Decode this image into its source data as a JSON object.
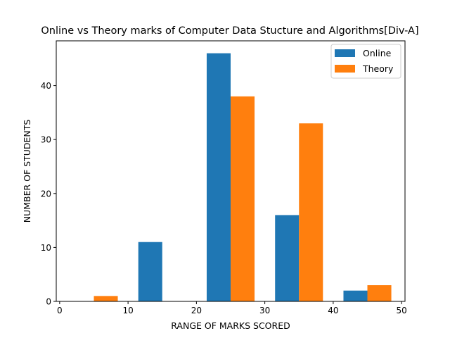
{
  "chart_data": {
    "type": "bar",
    "title": "Online vs Theory marks of Computer Data Stucture and Algorithms[Div-A]",
    "xlabel": "RANGE OF MARKS SCORED",
    "ylabel": "NUMBER OF STUDENTS",
    "xlim": [
      -0.5,
      50.5
    ],
    "ylim": [
      0,
      48.3
    ],
    "xticks": [
      0,
      10,
      20,
      30,
      40,
      50
    ],
    "yticks": [
      0,
      10,
      20,
      30,
      40
    ],
    "bins": [
      [
        0,
        10
      ],
      [
        10,
        20
      ],
      [
        20,
        30
      ],
      [
        30,
        40
      ],
      [
        40,
        50
      ]
    ],
    "grid": false,
    "legend_position": "top-right",
    "series": [
      {
        "name": "Online",
        "color": "#1f77b4",
        "values": [
          0,
          11,
          46,
          16,
          2
        ]
      },
      {
        "name": "Theory",
        "color": "#ff7f0e",
        "values": [
          1,
          0,
          38,
          33,
          3
        ]
      }
    ]
  }
}
